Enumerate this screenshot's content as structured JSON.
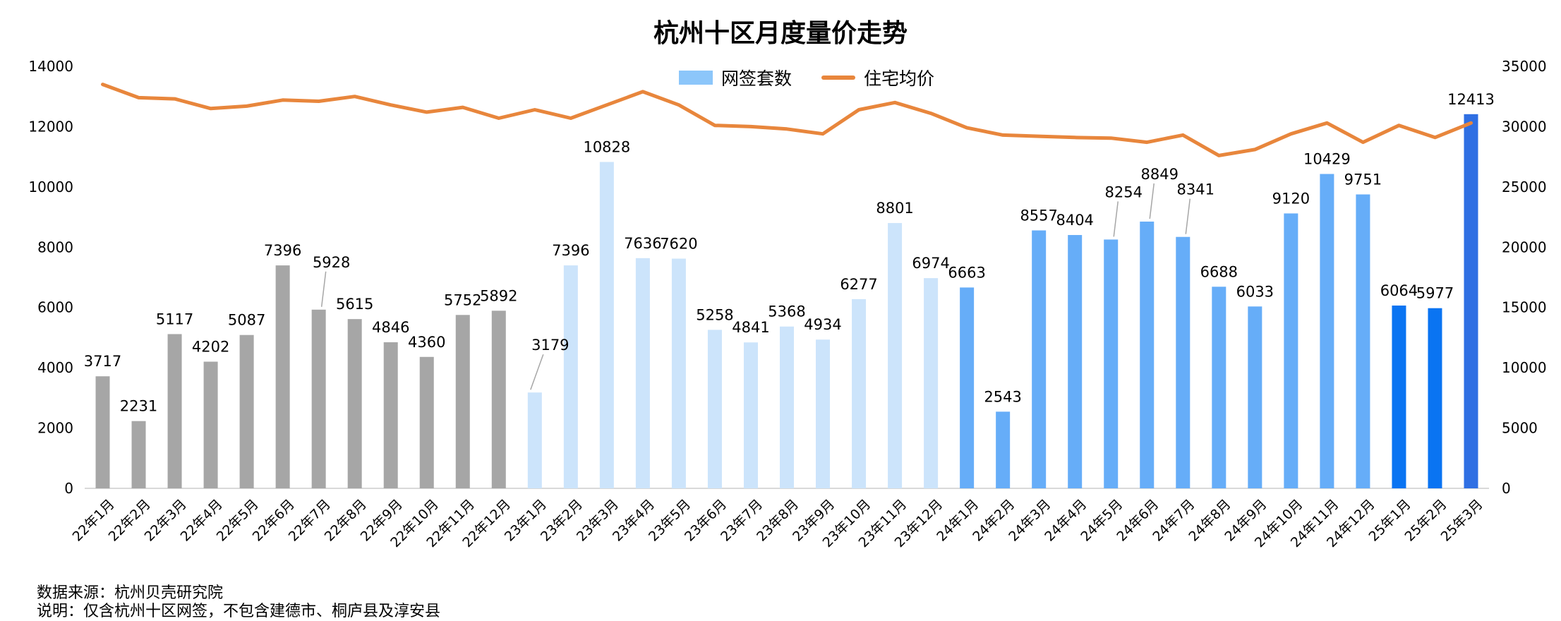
{
  "chart_data": {
    "type": "bar",
    "title": "杭州十区月度量价走势",
    "categories": [
      "22年1月",
      "22年2月",
      "22年3月",
      "22年4月",
      "22年5月",
      "22年6月",
      "22年7月",
      "22年8月",
      "22年9月",
      "22年10月",
      "22年11月",
      "22年12月",
      "23年1月",
      "23年2月",
      "23年3月",
      "23年4月",
      "23年5月",
      "23年6月",
      "23年7月",
      "23年8月",
      "23年9月",
      "23年10月",
      "23年11月",
      "23年12月",
      "24年1月",
      "24年2月",
      "24年3月",
      "24年4月",
      "24年5月",
      "24年6月",
      "24年7月",
      "24年8月",
      "24年9月",
      "24年10月",
      "24年11月",
      "24年12月",
      "25年1月",
      "25年2月",
      "25年3月"
    ],
    "series": [
      {
        "name": "网签套数",
        "type": "bar",
        "axis": "left",
        "values": [
          3717,
          2231,
          5117,
          4202,
          5087,
          7396,
          5928,
          5615,
          4846,
          4360,
          5752,
          5892,
          3179,
          7396,
          10828,
          7636,
          7620,
          5258,
          4841,
          5368,
          4934,
          6277,
          8801,
          6974,
          6663,
          2543,
          8557,
          8404,
          8254,
          8849,
          8341,
          6688,
          6033,
          9120,
          10429,
          9751,
          6064,
          5977,
          12413
        ],
        "labels": [
          "3717",
          "2231",
          "5117",
          "4202",
          "5087",
          "7396",
          "5928",
          "5615",
          "4846",
          "4360",
          "5752",
          "5892",
          "3179",
          "7396",
          "10828",
          "7636",
          "7620",
          "5258",
          "4841",
          "5368",
          "4934",
          "6277",
          "8801",
          "6974",
          "6663",
          "2543",
          "8557",
          "8404",
          "8254",
          "8849",
          "8341",
          "6688",
          "6033",
          "9120",
          "10429",
          "9751",
          "6064",
          "5977",
          "12413"
        ]
      },
      {
        "name": "住宅均价",
        "type": "line",
        "axis": "right",
        "values": [
          33500,
          32400,
          32300,
          31500,
          31700,
          32200,
          32100,
          32500,
          31800,
          31200,
          31600,
          30700,
          31400,
          30700,
          31800,
          32900,
          31800,
          30100,
          30000,
          29800,
          29400,
          31400,
          32000,
          31100,
          29900,
          29300,
          29200,
          29100,
          29050,
          28700,
          29300,
          27600,
          28100,
          29400,
          30300,
          28700,
          30100,
          29100,
          30300
        ]
      }
    ],
    "bar_colors": [
      "#a6a6a6",
      "#a6a6a6",
      "#a6a6a6",
      "#a6a6a6",
      "#a6a6a6",
      "#a6a6a6",
      "#a6a6a6",
      "#a6a6a6",
      "#a6a6a6",
      "#a6a6a6",
      "#a6a6a6",
      "#a6a6a6",
      "#cce4fb",
      "#cce4fb",
      "#cce4fb",
      "#cce4fb",
      "#cce4fb",
      "#cce4fb",
      "#cce4fb",
      "#cce4fb",
      "#cce4fb",
      "#cce4fb",
      "#cce4fb",
      "#cce4fb",
      "#66adf8",
      "#66adf8",
      "#66adf8",
      "#66adf8",
      "#66adf8",
      "#66adf8",
      "#66adf8",
      "#66adf8",
      "#66adf8",
      "#66adf8",
      "#66adf8",
      "#66adf8",
      "#0a74f2",
      "#0a74f2",
      "#2f6fe3"
    ],
    "line_color": "#e8863c",
    "legend_bar_color": "#8cc6fa",
    "y_left": {
      "min": 0,
      "max": 14000,
      "ticks": [
        "0",
        "2000",
        "4000",
        "6000",
        "8000",
        "10000",
        "12000",
        "14000"
      ]
    },
    "y_right": {
      "min": 0,
      "max": 35000,
      "ticks": [
        "0",
        "5000",
        "10000",
        "15000",
        "20000",
        "25000",
        "30000",
        "35000"
      ]
    },
    "legend": {
      "position": "top-center",
      "items": [
        "网签套数",
        "住宅均价"
      ]
    },
    "grid": false
  },
  "footer": {
    "source": "数据来源：杭州贝壳研究院",
    "note": "说明：仅含杭州十区网签，不包含建德市、桐庐县及淳安县"
  }
}
